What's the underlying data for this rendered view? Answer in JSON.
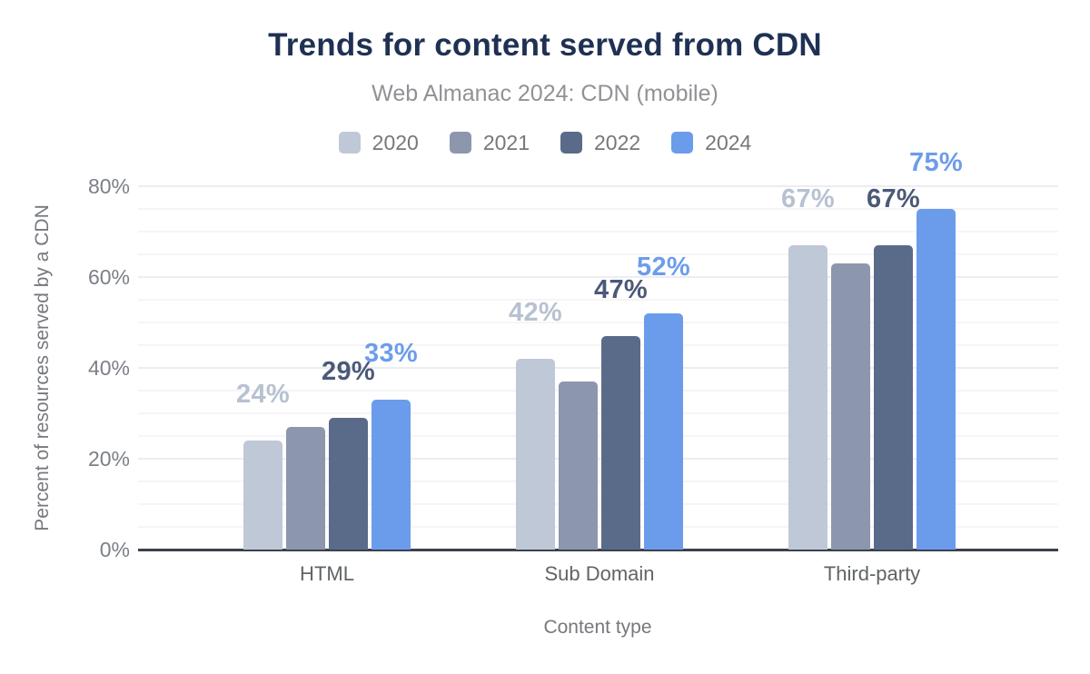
{
  "chart_data": {
    "type": "bar",
    "title": "Trends for content served from CDN",
    "subtitle": "Web Almanac 2024: CDN (mobile)",
    "xlabel": "Content type",
    "ylabel": "Percent of resources served by a CDN",
    "categories": [
      "HTML",
      "Sub Domain",
      "Third-party"
    ],
    "series": [
      {
        "name": "2020",
        "color": "#bfc8d6",
        "label_color": "#b7c1d1",
        "values": [
          24,
          42,
          67
        ],
        "labels": [
          "24%",
          "42%",
          "67%"
        ]
      },
      {
        "name": "2021",
        "color": "#8c97ae",
        "label_color": null,
        "values": [
          27,
          37,
          63
        ],
        "labels": [
          null,
          null,
          null
        ]
      },
      {
        "name": "2022",
        "color": "#5a6b89",
        "label_color": "#4b5978",
        "values": [
          29,
          47,
          67
        ],
        "labels": [
          "29%",
          "47%",
          "67%"
        ]
      },
      {
        "name": "2024",
        "color": "#6b9ceb",
        "label_color": "#6d9cea",
        "values": [
          33,
          52,
          75
        ],
        "labels": [
          "33%",
          "52%",
          "75%"
        ]
      }
    ],
    "ylim": [
      0,
      80
    ],
    "yticks": [
      {
        "value": 0,
        "label": "0%"
      },
      {
        "value": 20,
        "label": "20%"
      },
      {
        "value": 40,
        "label": "40%"
      },
      {
        "value": 60,
        "label": "60%"
      },
      {
        "value": 80,
        "label": "80%"
      }
    ],
    "grid": "horizontal minor lines every 5%, major every 20%",
    "legend_position": "top"
  },
  "colors": {
    "background": "#ffffff",
    "title_text": "#1f3153",
    "subtitle_text": "#8f9296",
    "legend_text": "#75787c",
    "ytick_text": "#7b8088",
    "category_text": "#5f6468",
    "axis_title_text": "#75787d",
    "grid_minor": "#f5f5f7",
    "grid_major": "#ededf0",
    "axis_line": "#3b414e"
  }
}
